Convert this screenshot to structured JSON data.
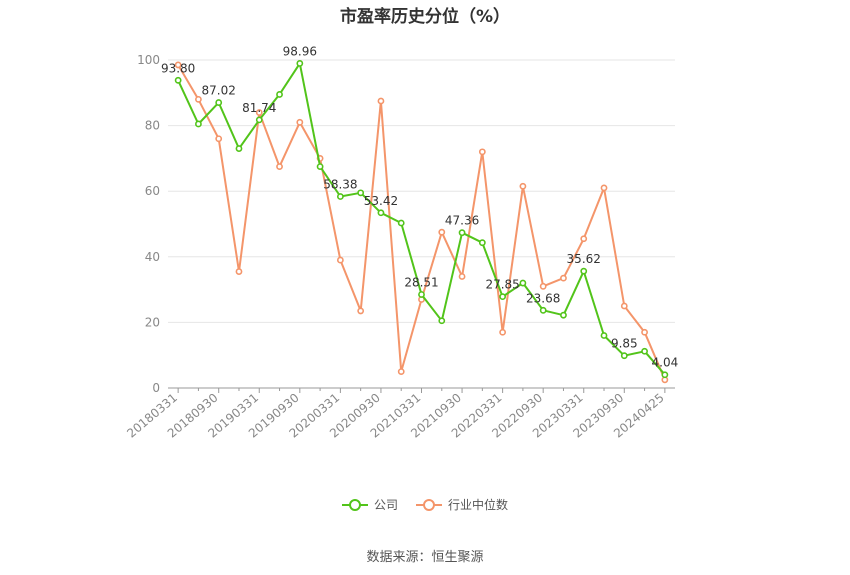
{
  "chart_data": {
    "type": "line",
    "title": "市盈率历史分位（%）",
    "xlabel": "",
    "ylabel": "",
    "ylim": [
      0,
      100
    ],
    "yticks": [
      0,
      20,
      40,
      60,
      80,
      100
    ],
    "x": [
      "20180331",
      "20180630",
      "20180930",
      "20181231",
      "20190331",
      "20190630",
      "20190930",
      "20191231",
      "20200331",
      "20200630",
      "20200930",
      "20201231",
      "20210331",
      "20210630",
      "20210930",
      "20211231",
      "20220331",
      "20220630",
      "20220930",
      "20221231",
      "20230331",
      "20230630",
      "20230930",
      "20231231",
      "20240425"
    ],
    "x_tick_labels": [
      "20180331",
      "20180930",
      "20190331",
      "20190930",
      "20200331",
      "20200930",
      "20210331",
      "20210930",
      "20220331",
      "20220930",
      "20230331",
      "20230930",
      "20240425"
    ],
    "grid": true,
    "legend_position": "bottom",
    "series": [
      {
        "name": "公司",
        "color": "#52c41a",
        "values": [
          93.8,
          80.5,
          87.02,
          73.0,
          81.74,
          89.5,
          98.96,
          67.5,
          58.38,
          59.5,
          53.42,
          50.3,
          28.51,
          20.5,
          47.36,
          44.3,
          27.85,
          32.0,
          23.68,
          22.2,
          35.62,
          16.0,
          9.85,
          11.2,
          4.04
        ],
        "labels": {
          "0": "93.80",
          "2": "87.02",
          "4": "81.74",
          "6": "98.96",
          "8": "58.38",
          "10": "53.42",
          "12": "28.51",
          "14": "47.36",
          "16": "27.85",
          "18": "23.68",
          "20": "35.62",
          "22": "9.85",
          "24": "4.04"
        }
      },
      {
        "name": "行业中位数",
        "color": "#f4956a",
        "values": [
          98.5,
          88.0,
          76.0,
          35.5,
          84.0,
          67.5,
          81.0,
          70.0,
          39.0,
          23.5,
          87.5,
          5.0,
          27.0,
          47.5,
          34.0,
          72.0,
          17.0,
          61.5,
          31.0,
          33.5,
          45.5,
          61.0,
          25.0,
          17.0,
          2.5
        ]
      }
    ]
  },
  "source": "数据来源：恒生聚源"
}
